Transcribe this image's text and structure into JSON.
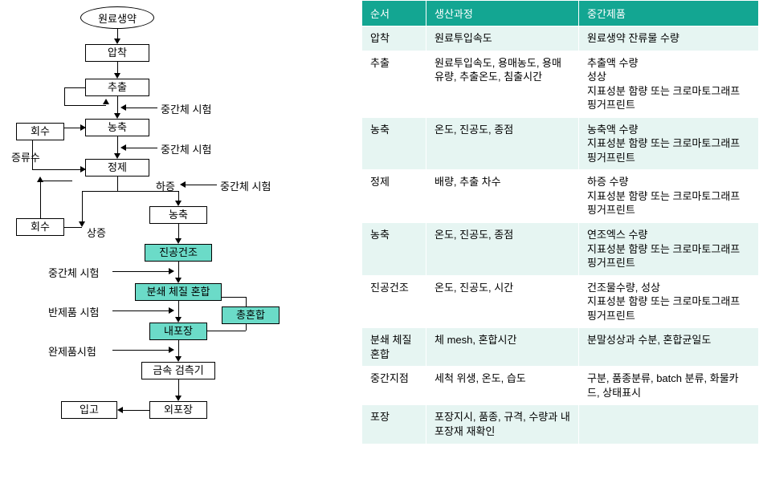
{
  "flow": {
    "start": "원료생약",
    "n_apchak": "압착",
    "n_chuchul": "추출",
    "n_hoesu1": "회수",
    "n_nongchuk1": "농축",
    "n_jeongje": "정제",
    "n_hoesu2": "회수",
    "n_nongchuk2": "농축",
    "n_jingong": "진공건조",
    "n_bunswae": "분쇄 체질 혼합",
    "n_chonghonhap": "총혼합",
    "n_naepojang": "내포장",
    "n_geumsok": "금속 검측기",
    "n_oepojang": "외포장",
    "n_ipgo": "입고",
    "lbl_jeungryusu": "증류수",
    "lbl_junggan1": "중간체 시험",
    "lbl_junggan2": "중간체 시험",
    "lbl_junggan3": "중간체 시험",
    "lbl_hajeung": "하증",
    "lbl_sangjeung": "상증",
    "lbl_junggan4": "중간체 시험",
    "lbl_banjepum": "반제품 시험",
    "lbl_wanjepum": "완제품시험"
  },
  "table": {
    "headers": [
      "순서",
      "생산과정",
      "중간제품"
    ],
    "rows": [
      {
        "class": "pale",
        "c": [
          "압착",
          "원료투입속도",
          "원료생약 잔류물 수량"
        ]
      },
      {
        "class": "plain",
        "c": [
          "추출",
          "원료투입속도, 용매농도, 용매유량, 추출온도, 침출시간",
          "추출액 수량\n성상\n지표성분 함량 또는 크로마토그래프 핑거프린트"
        ]
      },
      {
        "class": "pale",
        "c": [
          "농축",
          "온도, 진공도, 종점",
          "농축액 수량\n지표성분 함량 또는 크로마토그래프 핑거프린트"
        ]
      },
      {
        "class": "plain",
        "c": [
          "정제",
          "배량, 추출 차수",
          "하증 수량\n지표성분 함량 또는 크로마토그래프 핑거프린트"
        ]
      },
      {
        "class": "pale",
        "c": [
          "농축",
          "온도, 진공도, 종점",
          "연조엑스 수량\n지표성분 함량 또는 크로마토그래프 핑거프린트"
        ]
      },
      {
        "class": "plain",
        "c": [
          "진공건조",
          "온도, 진공도, 시간",
          "건조물수량, 성상\n지표성분 함량 또는 크로마토그래프 핑거프린트"
        ]
      },
      {
        "class": "pale",
        "c": [
          "분쇄 체질 혼합",
          "체 mesh, 혼합시간",
          "분말성상과 수분, 혼합균일도"
        ]
      },
      {
        "class": "plain",
        "c": [
          "중간지점",
          "세척 위생, 온도, 습도",
          "구분, 품종분류, batch 분류, 화물카드, 상태표시"
        ]
      },
      {
        "class": "pale",
        "c": [
          "포장",
          "포장지시, 품종, 규격, 수량과 내포장재 재확인",
          ""
        ]
      }
    ]
  },
  "colors": {
    "cyan": "#6bdbc8",
    "teal": "#13a692",
    "pale": "#e6f5f2"
  }
}
